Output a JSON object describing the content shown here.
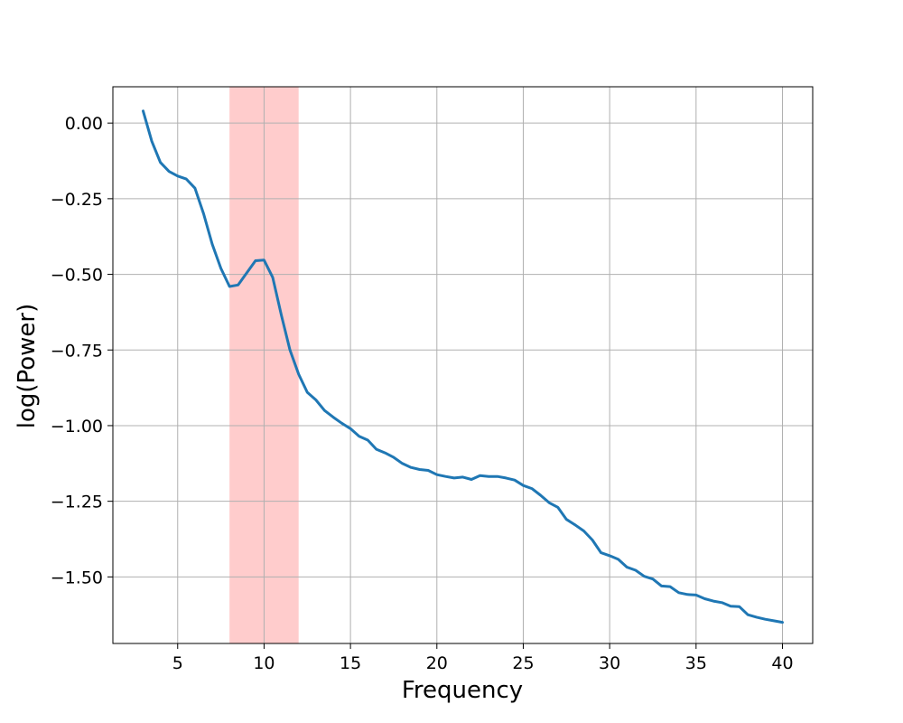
{
  "chart_data": {
    "type": "line",
    "title": "",
    "xlabel": "Frequency",
    "ylabel": "log(Power)",
    "xlim": [
      1.25,
      41.75
    ],
    "ylim": [
      -1.72,
      0.12
    ],
    "xticks": [
      5,
      10,
      15,
      20,
      25,
      30,
      35,
      40
    ],
    "xtick_labels": [
      "5",
      "10",
      "15",
      "20",
      "25",
      "30",
      "35",
      "40"
    ],
    "yticks": [
      0.0,
      -0.25,
      -0.5,
      -0.75,
      -1.0,
      -1.25,
      -1.5
    ],
    "ytick_labels": [
      "0.00",
      "−0.25",
      "−0.50",
      "−0.75",
      "−1.00",
      "−1.25",
      "−1.50"
    ],
    "grid": true,
    "highlight_band": {
      "x_range": [
        8,
        12
      ],
      "color": "#ffcccc"
    },
    "series": [
      {
        "color": "#1f77b4",
        "x": [
          3.0,
          3.5,
          4.0,
          4.5,
          5.0,
          5.5,
          6.0,
          6.5,
          7.0,
          7.5,
          8.0,
          8.5,
          9.0,
          9.5,
          10.0,
          10.5,
          11.0,
          11.5,
          12.0,
          12.5,
          13.0,
          13.5,
          14.0,
          14.5,
          15.0,
          15.5,
          16.0,
          16.5,
          17.0,
          17.5,
          18.0,
          18.5,
          19.0,
          19.5,
          20.0,
          20.5,
          21.0,
          21.5,
          22.0,
          22.5,
          23.0,
          23.5,
          24.0,
          24.5,
          25.0,
          25.5,
          26.0,
          26.5,
          27.0,
          27.5,
          28.0,
          28.5,
          29.0,
          29.5,
          30.0,
          30.5,
          31.0,
          31.5,
          32.0,
          32.5,
          33.0,
          33.5,
          34.0,
          34.5,
          35.0,
          35.5,
          36.0,
          36.5,
          37.0,
          37.5,
          38.0,
          38.5,
          39.0,
          39.5,
          40.0
        ],
        "y": [
          0.04,
          -0.06,
          -0.13,
          -0.16,
          -0.175,
          -0.185,
          -0.215,
          -0.3,
          -0.4,
          -0.48,
          -0.54,
          -0.535,
          -0.495,
          -0.455,
          -0.453,
          -0.51,
          -0.635,
          -0.75,
          -0.83,
          -0.89,
          -0.915,
          -0.95,
          -0.972,
          -0.992,
          -1.01,
          -1.035,
          -1.048,
          -1.078,
          -1.09,
          -1.105,
          -1.125,
          -1.138,
          -1.145,
          -1.148,
          -1.162,
          -1.168,
          -1.173,
          -1.17,
          -1.178,
          -1.165,
          -1.168,
          -1.168,
          -1.173,
          -1.18,
          -1.198,
          -1.208,
          -1.23,
          -1.255,
          -1.27,
          -1.31,
          -1.328,
          -1.348,
          -1.378,
          -1.42,
          -1.43,
          -1.442,
          -1.468,
          -1.478,
          -1.498,
          -1.507,
          -1.53,
          -1.532,
          -1.552,
          -1.558,
          -1.56,
          -1.572,
          -1.58,
          -1.585,
          -1.597,
          -1.598,
          -1.625,
          -1.633,
          -1.64,
          -1.645,
          -1.65
        ]
      }
    ]
  }
}
